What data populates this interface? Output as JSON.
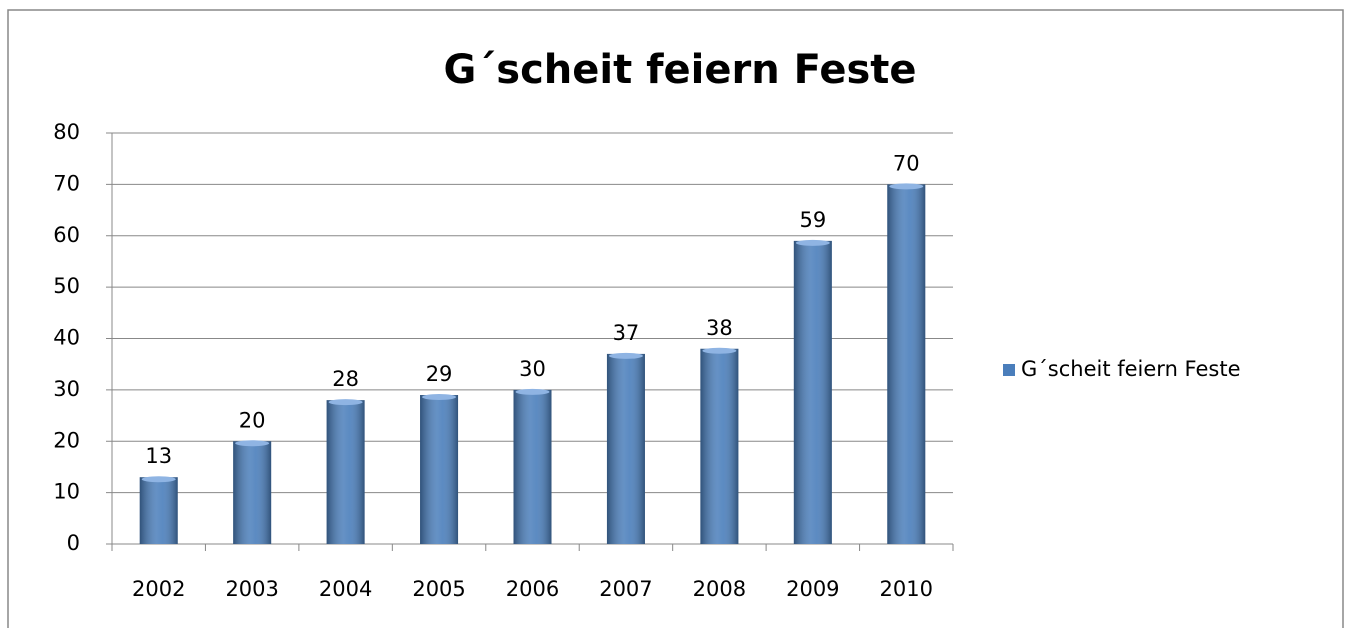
{
  "chart_data": {
    "type": "bar",
    "title": "G´scheit feiern Feste",
    "categories": [
      "2002",
      "2003",
      "2004",
      "2005",
      "2006",
      "2007",
      "2008",
      "2009",
      "2010"
    ],
    "series": [
      {
        "name": "G´scheit feiern Feste",
        "color": "#4a7ebb",
        "values": [
          13,
          20,
          28,
          29,
          30,
          37,
          38,
          59,
          70
        ]
      }
    ],
    "ylim": [
      0,
      80
    ],
    "yticks": [
      0,
      10,
      20,
      30,
      40,
      50,
      60,
      70,
      80
    ],
    "grid": true,
    "legend": "right"
  }
}
